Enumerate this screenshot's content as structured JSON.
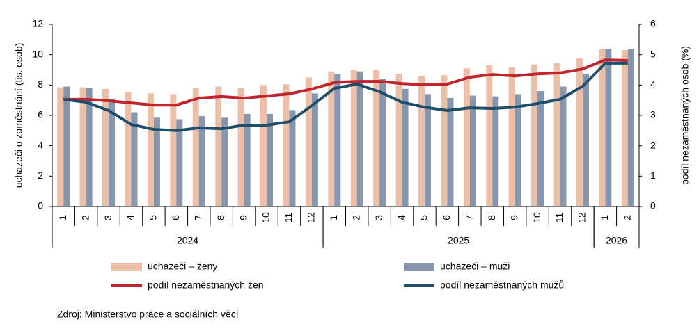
{
  "chart_data": {
    "type": "bar_line",
    "y_label": "uchazeči o zaměstnání  (tis. osob)",
    "y2_label": "podíl nezaměstnaných osob (%)",
    "source": "Zdroj: Ministerstvo  práce a sociálních věcí",
    "groups": [
      {
        "label": "2024",
        "categories": [
          "1",
          "2",
          "3",
          "4",
          "5",
          "6",
          "7",
          "8",
          "9",
          "10",
          "11",
          "12"
        ]
      },
      {
        "label": "2025",
        "categories": [
          "1",
          "2",
          "3",
          "4",
          "5",
          "6",
          "7",
          "8",
          "9",
          "10",
          "11",
          "12"
        ]
      },
      {
        "label": "2026",
        "categories": [
          "1",
          "2"
        ]
      }
    ],
    "ylim": [
      0,
      12
    ],
    "yticks": [
      0,
      2,
      4,
      6,
      8,
      10,
      12
    ],
    "y2lim": [
      0,
      6
    ],
    "y2ticks": [
      0,
      1,
      2,
      3,
      4,
      5,
      6
    ],
    "series": [
      {
        "name": "uchazeči – ženy",
        "kind": "bar",
        "color": "#ebbfa8",
        "values": [
          7.85,
          7.85,
          7.75,
          7.55,
          7.45,
          7.4,
          7.8,
          7.9,
          7.8,
          8.0,
          8.05,
          8.5,
          8.9,
          9.0,
          9.0,
          8.75,
          8.6,
          8.65,
          9.1,
          9.3,
          9.2,
          9.35,
          9.45,
          9.75,
          10.35,
          10.3
        ]
      },
      {
        "name": "uchazeči – muži",
        "kind": "bar",
        "color": "#8696ae",
        "values": [
          7.9,
          7.8,
          7.1,
          6.2,
          5.85,
          5.75,
          5.95,
          5.85,
          6.1,
          6.1,
          6.35,
          7.45,
          8.7,
          8.9,
          8.4,
          7.75,
          7.4,
          7.15,
          7.3,
          7.25,
          7.4,
          7.6,
          7.9,
          8.75,
          10.4,
          10.35
        ]
      },
      {
        "name": "podíl nezaměstnaných žen",
        "kind": "line",
        "axis": "y2",
        "color": "#c0242c",
        "values": [
          3.53,
          3.53,
          3.48,
          3.41,
          3.34,
          3.34,
          3.57,
          3.62,
          3.57,
          3.64,
          3.71,
          3.87,
          4.08,
          4.12,
          4.12,
          4.05,
          4.01,
          4.03,
          4.26,
          4.35,
          4.3,
          4.37,
          4.4,
          4.53,
          4.83,
          4.81
        ]
      },
      {
        "name": "podíl nezaměstnaných mužů",
        "kind": "line",
        "axis": "y2",
        "color": "#1f4e6b",
        "values": [
          3.53,
          3.43,
          3.16,
          2.7,
          2.54,
          2.5,
          2.59,
          2.56,
          2.68,
          2.68,
          2.79,
          3.32,
          3.89,
          4.03,
          3.78,
          3.43,
          3.27,
          3.16,
          3.25,
          3.23,
          3.27,
          3.39,
          3.53,
          3.96,
          4.72,
          4.72
        ]
      }
    ]
  }
}
